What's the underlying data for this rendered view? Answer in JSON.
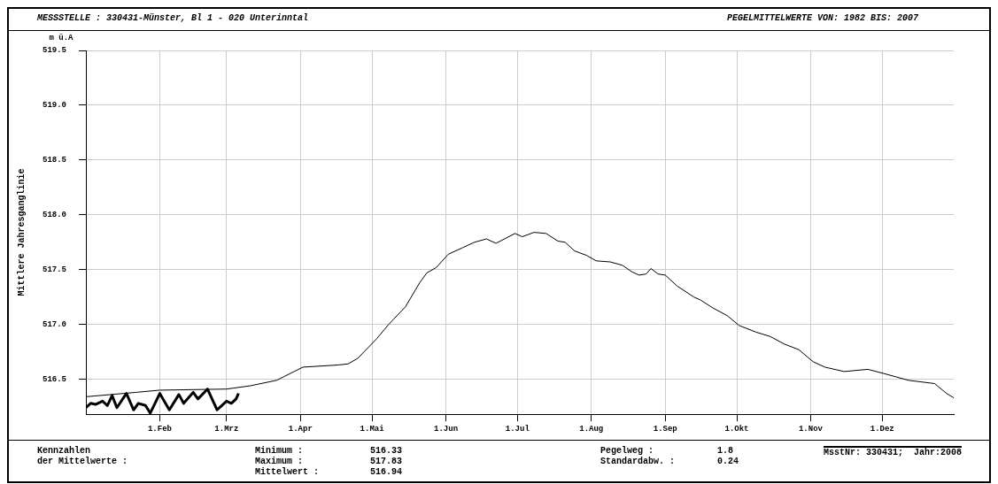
{
  "chart_data": {
    "type": "line",
    "title": "MESSSTELLE : 330431-Münster, Bl  1 - 020 Unterinntal",
    "subtitle": "PEGELMITTELWERTE VON: 1982 BIS: 2007",
    "ylabel": "Mittlere Jahresganglinie",
    "annotations": [
      "m ü.A",
      "Kennzahlen",
      "der Mittelwerte :",
      "Minimum :",
      "516.33",
      "Maximum :",
      "517.83",
      "Mittelwert :",
      "516.94",
      "Pegelweg :",
      "1.8",
      "Standardabw. :",
      "0.24",
      "MsstNr: 330431;  Jahr:2008"
    ],
    "series": [
      {
        "color": "#000000",
        "x": [
          "--01-01",
          "--01-22",
          "--02-01",
          "--03-01",
          "--03-11",
          "--03-22",
          "--04-02",
          "--04-17",
          "--04-21",
          "--04-25",
          "--05-03",
          "--05-08",
          "--05-15",
          "--05-21",
          "--05-24",
          "--05-28",
          "--06-02",
          "--06-08",
          "--06-13",
          "--06-18",
          "--06-22",
          "--06-30",
          "--07-03",
          "--07-08",
          "--07-13",
          "--07-18",
          "--07-21",
          "--07-25",
          "--07-30",
          "--08-03",
          "--08-09",
          "--08-14",
          "--08-18",
          "--08-21",
          "--08-24",
          "--08-26",
          "--08-29",
          "--09-01",
          "--09-06",
          "--09-13",
          "--09-16",
          "--09-21",
          "--09-27",
          "--10-02",
          "--10-09",
          "--10-15",
          "--10-21",
          "--10-27",
          "--11-02",
          "--11-07",
          "--11-15",
          "--11-25",
          "--12-02",
          "--12-07",
          "--12-12",
          "--12-23",
          "--12-28",
          "--12-31"
        ],
        "values": [
          516.34,
          516.38,
          516.4,
          516.41,
          516.44,
          516.49,
          516.61,
          516.63,
          516.64,
          516.69,
          516.87,
          517.0,
          517.16,
          517.38,
          517.47,
          517.52,
          517.64,
          517.7,
          517.75,
          517.78,
          517.74,
          517.83,
          517.8,
          517.84,
          517.83,
          517.76,
          517.75,
          517.67,
          517.63,
          517.58,
          517.57,
          517.54,
          517.48,
          517.45,
          517.46,
          517.51,
          517.46,
          517.45,
          517.35,
          517.25,
          517.22,
          517.15,
          517.08,
          516.99,
          516.93,
          516.89,
          516.82,
          516.77,
          516.66,
          516.61,
          516.57,
          516.59,
          516.55,
          516.52,
          516.49,
          516.46,
          516.37,
          516.33
        ]
      },
      {
        "color": "#000000",
        "x": [
          "--01-01",
          "--01-03",
          "--01-05",
          "--01-08",
          "--01-10",
          "--01-12",
          "--01-14",
          "--01-18",
          "--01-21",
          "--01-23",
          "--01-26",
          "--01-28",
          "--02-01",
          "--02-05",
          "--02-09",
          "--02-11",
          "--02-15",
          "--02-17",
          "--02-21",
          "--02-25",
          "--02-27",
          "--03-01",
          "--03-03",
          "--03-05",
          "--03-06"
        ],
        "values": [
          516.24,
          516.28,
          516.27,
          516.3,
          516.26,
          516.35,
          516.24,
          516.37,
          516.22,
          516.28,
          516.26,
          516.19,
          516.37,
          516.22,
          516.36,
          516.28,
          516.38,
          516.32,
          516.41,
          516.22,
          516.26,
          516.3,
          516.28,
          516.32,
          516.37
        ]
      }
    ],
    "xlim": [
      "--01-01",
      "--12-31"
    ],
    "xticks": [
      {
        "value": "--02-01",
        "label": "1.Feb"
      },
      {
        "value": "--03-01",
        "label": "1.Mrz"
      },
      {
        "value": "--04-01",
        "label": "1.Apr"
      },
      {
        "value": "--05-01",
        "label": "1.Mai"
      },
      {
        "value": "--06-01",
        "label": "1.Jun"
      },
      {
        "value": "--07-01",
        "label": "1.Jul"
      },
      {
        "value": "--08-01",
        "label": "1.Aug"
      },
      {
        "value": "--09-01",
        "label": "1.Sep"
      },
      {
        "value": "--10-01",
        "label": "1.Okt"
      },
      {
        "value": "--11-01",
        "label": "1.Nov"
      },
      {
        "value": "--12-01",
        "label": "1.Dez"
      }
    ],
    "ylim": [
      516.18,
      519.5
    ],
    "yticks": [
      516.5,
      {
        "value": 517,
        "label": "517.0"
      },
      517.5,
      {
        "value": 518,
        "label": "518.0"
      },
      518.5,
      {
        "value": 519,
        "label": "519.0"
      },
      519.5
    ],
    "grid": true,
    "legend": false,
    "marker": "none",
    "line_style": "solid"
  }
}
